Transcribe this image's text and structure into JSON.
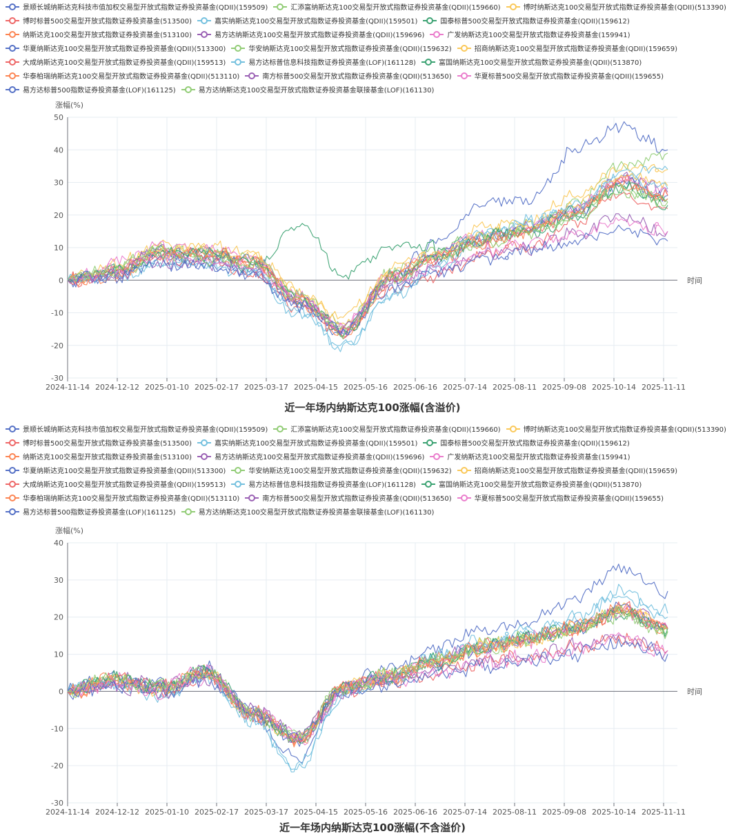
{
  "colors": [
    "#5470c6",
    "#91cc75",
    "#fac858",
    "#ee6666",
    "#73c0de",
    "#3ba272",
    "#fc8452",
    "#9a60b4",
    "#ea7ccc"
  ],
  "legend": [
    "景顺长城纳斯达克科技市值加权交易型开放式指数证券投资基金(QDII)(159509)",
    "汇添富纳斯达克100交易型开放式指数证券投资基金(QDII)(159660)",
    "博时纳斯达克100交易型开放式指数证券投资基金(QDII)(513390)",
    "博时标普500交易型开放式指数证券投资基金(513500)",
    "嘉实纳斯达克100交易型开放式指数证券投资基金(QDII)(159501)",
    "国泰标普500交易型开放式指数证券投资基金(QDII)(159612)",
    "纳斯达克100交易型开放式指数证券投资基金(513100)",
    "易方达纳斯达克100交易型开放式指数证券投资基金(QDII)(159696)",
    "广发纳斯达克100交易型开放式指数证券投资基金(159941)",
    "华夏纳斯达克100交易型开放式指数证券投资基金(QDII)(513300)",
    "华安纳斯达克100交易型开放式指数证券投资基金(QDII)(159632)",
    "招商纳斯达克100交易型开放式指数证券投资基金(QDII)(159659)",
    "大成纳斯达克100交易型开放式指数证券投资基金(QDII)(159513)",
    "易方达标普信息科技指数证券投资基金(LOF)(161128)",
    "富国纳斯达克100交易型开放式指数证券投资基金(QDII)(513870)",
    "华泰柏瑞纳斯达克100交易型开放式指数证券投资基金(QDII)(513110)",
    "南方标普500交易型开放式指数证券投资基金(QDII)(513650)",
    "华夏标普500交易型开放式指数证券投资基金(QDII)(159655)",
    "易方达标普500指数证券投资基金(LOF)(161125)",
    "易方达纳斯达克100交易型开放式指数证券投资基金联接基金(LOF)(161130)"
  ],
  "chart_data": [
    {
      "type": "line",
      "title": "近一年场内纳斯达克100涨幅(含溢价)",
      "ylabel": "涨幅(%)",
      "xlabel": "时间",
      "ylim": [
        -30,
        50
      ],
      "yticks": [
        -30,
        -20,
        -10,
        0,
        10,
        20,
        30,
        40,
        50
      ],
      "x_tick_labels": [
        "2024-11-14",
        "2024-12-12",
        "2025-01-10",
        "2025-02-17",
        "2025-03-17",
        "2025-04-15",
        "2025-05-16",
        "2025-06-16",
        "2025-07-14",
        "2025-08-11",
        "2025-09-08",
        "2025-10-14",
        "2025-11-11"
      ],
      "grid": true,
      "legend_position": "top",
      "series": [
        {
          "name": "景顺长城纳斯达克科技市值加权交易型开放式指数证券投资基金(QDII)(159509)",
          "values": [
            0,
            2,
            9,
            6,
            3,
            -7,
            -16,
            0,
            12,
            24,
            25,
            40,
            48,
            40
          ]
        },
        {
          "name": "汇添富纳斯达克100交易型开放式指数证券投资基金(QDII)(159660)",
          "values": [
            0,
            3,
            10,
            9,
            6,
            -5,
            -14,
            2,
            9,
            13,
            17,
            23,
            35,
            39
          ]
        },
        {
          "name": "博时纳斯达克100交易型开放式指数证券投资基金(QDII)(513390)",
          "values": [
            0,
            4,
            11,
            10,
            8,
            -4,
            -12,
            4,
            8,
            16,
            18,
            26,
            34,
            34
          ]
        },
        {
          "name": "博时标普500交易型开放式指数证券投资基金(513500)",
          "values": [
            0,
            2,
            7,
            6,
            3,
            -8,
            -16,
            -3,
            1,
            8,
            10,
            18,
            26,
            22
          ]
        },
        {
          "name": "嘉实纳斯达克100交易型开放式指数证券投资基金(QDII)(159501)",
          "values": [
            0,
            1,
            5,
            5,
            2,
            -10,
            -20,
            -5,
            3,
            15,
            18,
            22,
            32,
            34
          ]
        },
        {
          "name": "国泰标普500交易型开放式指数证券投资基金(QDII)(159612)",
          "values": [
            0,
            3,
            9,
            7,
            4,
            17,
            2,
            10,
            10,
            13,
            15,
            19,
            29,
            23
          ]
        },
        {
          "name": "纳斯达克100交易型开放式指数证券投资基金(513100)",
          "values": [
            0,
            2,
            8,
            8,
            6,
            -6,
            -17,
            0,
            6,
            12,
            15,
            21,
            30,
            26
          ]
        },
        {
          "name": "易方达纳斯达克100交易型开放式指数证券投资基金(QDII)(159696)",
          "values": [
            0,
            2,
            9,
            8,
            6,
            -5,
            -16,
            1,
            7,
            13,
            16,
            22,
            31,
            27
          ]
        },
        {
          "name": "广发纳斯达克100交易型开放式指数证券投资基金(159941)",
          "values": [
            0,
            5,
            10,
            9,
            7,
            -5,
            -15,
            2,
            8,
            14,
            16,
            22,
            31,
            28
          ]
        },
        {
          "name": "华夏纳斯达克100交易型开放式指数证券投资基金(QDII)(513300)",
          "values": [
            0,
            2,
            8,
            8,
            6,
            -6,
            -16,
            1,
            7,
            13,
            15,
            21,
            30,
            26
          ]
        },
        {
          "name": "华安纳斯达克100交易型开放式指数证券投资基金(QDII)(159632)",
          "values": [
            0,
            3,
            9,
            8,
            6,
            -5,
            -15,
            1,
            7,
            12,
            15,
            20,
            28,
            24
          ]
        },
        {
          "name": "招商纳斯达克100交易型开放式指数证券投资基金(QDII)(159659)",
          "values": [
            0,
            3,
            9,
            9,
            7,
            -4,
            -14,
            2,
            8,
            14,
            17,
            23,
            32,
            29
          ]
        },
        {
          "name": "大成纳斯达克100交易型开放式指数证券投资基金(QDII)(159513)",
          "values": [
            0,
            2,
            8,
            8,
            6,
            -6,
            -17,
            0,
            6,
            12,
            15,
            21,
            30,
            26
          ]
        },
        {
          "name": "易方达标普信息科技指数证券投资基金(LOF)(161128)",
          "values": [
            0,
            1,
            6,
            5,
            3,
            -9,
            -21,
            -4,
            4,
            15,
            17,
            23,
            33,
            28
          ]
        },
        {
          "name": "富国纳斯达克100交易型开放式指数证券投资基金(QDII)(513870)",
          "values": [
            0,
            2,
            8,
            8,
            6,
            -6,
            -16,
            1,
            7,
            13,
            15,
            21,
            29,
            25
          ]
        },
        {
          "name": "华泰柏瑞纳斯达克100交易型开放式指数证券投资基金(QDII)(513110)",
          "values": [
            0,
            2,
            8,
            8,
            6,
            -6,
            -16,
            1,
            7,
            13,
            15,
            21,
            30,
            25
          ]
        },
        {
          "name": "南方标普500交易型开放式指数证券投资基金(QDII)(513650)",
          "values": [
            0,
            2,
            6,
            5,
            3,
            -7,
            -15,
            -1,
            3,
            8,
            10,
            14,
            19,
            15
          ]
        },
        {
          "name": "华夏标普500交易型开放式指数证券投资基金(QDII)(159655)",
          "values": [
            0,
            3,
            7,
            6,
            4,
            -6,
            -14,
            0,
            4,
            9,
            11,
            15,
            18,
            15
          ]
        },
        {
          "name": "易方达标普500指数证券投资基金(LOF)(161125)",
          "values": [
            0,
            1,
            5,
            4,
            2,
            -8,
            -15,
            -2,
            2,
            7,
            9,
            12,
            16,
            12
          ]
        },
        {
          "name": "易方达纳斯达克100交易型开放式指数证券投资基金联接基金(LOF)(161130)",
          "values": [
            0,
            2,
            8,
            7,
            5,
            -6,
            -16,
            0,
            6,
            12,
            14,
            20,
            28,
            24
          ]
        }
      ]
    },
    {
      "type": "line",
      "title": "近一年场内纳斯达克100涨幅(不含溢价)",
      "ylabel": "涨幅(%)",
      "xlabel": "时间",
      "ylim": [
        -30,
        40
      ],
      "yticks": [
        -30,
        -20,
        -10,
        0,
        10,
        20,
        30,
        40
      ],
      "x_tick_labels": [
        "2024-11-14",
        "2024-12-12",
        "2025-01-10",
        "2025-02-17",
        "2025-03-17",
        "2025-04-15",
        "2025-05-16",
        "2025-06-16",
        "2025-07-14",
        "2025-08-11",
        "2025-09-08",
        "2025-10-14",
        "2025-11-11"
      ],
      "grid": true,
      "legend_position": "top",
      "series": [
        {
          "name": "景顺长城纳斯达克科技市值加权交易型开放式指数证券投资基金(QDII)(159509)",
          "values": [
            0,
            3,
            2,
            6,
            -6,
            -18,
            1,
            6,
            11,
            17,
            19,
            25,
            34,
            27
          ]
        },
        {
          "name": "汇添富纳斯达克100交易型开放式指数证券投资基金(QDII)(159660)",
          "values": [
            0,
            3,
            1,
            5,
            -6,
            -13,
            1,
            4,
            8,
            12,
            14,
            17,
            21,
            16
          ]
        },
        {
          "name": "博时纳斯达克100交易型开放式指数证券投资基金(QDII)(513390)",
          "values": [
            0,
            3,
            1,
            5,
            -6,
            -13,
            1,
            4,
            8,
            12,
            14,
            17,
            22,
            17
          ]
        },
        {
          "name": "博时标普500交易型开放式指数证券投资基金(513500)",
          "values": [
            0,
            2,
            0,
            4,
            -5,
            -12,
            0,
            3,
            5,
            8,
            9,
            12,
            14,
            11
          ]
        },
        {
          "name": "嘉实纳斯达克100交易型开放式指数证券投资基金(QDII)(159501)",
          "values": [
            0,
            2,
            0,
            5,
            -8,
            -20,
            0,
            4,
            9,
            13,
            16,
            20,
            26,
            20
          ]
        },
        {
          "name": "国泰标普500交易型开放式指数证券投资基金(QDII)(159612)",
          "values": [
            0,
            3,
            1,
            6,
            -6,
            -13,
            1,
            4,
            8,
            12,
            14,
            17,
            21,
            17
          ]
        },
        {
          "name": "纳斯达克100交易型开放式指数证券投资基金(513100)",
          "values": [
            0,
            3,
            1,
            5,
            -6,
            -13,
            1,
            4,
            8,
            12,
            14,
            17,
            22,
            17
          ]
        },
        {
          "name": "易方达纳斯达克100交易型开放式指数证券投资基金(QDII)(159696)",
          "values": [
            0,
            3,
            1,
            5,
            -6,
            -13,
            1,
            4,
            8,
            12,
            14,
            17,
            22,
            17
          ]
        },
        {
          "name": "广发纳斯达克100交易型开放式指数证券投资基金(159941)",
          "values": [
            0,
            3,
            1,
            5,
            -6,
            -13,
            1,
            4,
            8,
            12,
            14,
            17,
            22,
            17
          ]
        },
        {
          "name": "华夏纳斯达克100交易型开放式指数证券投资基金(QDII)(513300)",
          "values": [
            0,
            3,
            1,
            5,
            -6,
            -13,
            1,
            4,
            8,
            12,
            14,
            17,
            22,
            17
          ]
        },
        {
          "name": "华安纳斯达克100交易型开放式指数证券投资基金(QDII)(159632)",
          "values": [
            0,
            3,
            1,
            5,
            -6,
            -13,
            1,
            4,
            8,
            12,
            14,
            17,
            21,
            16
          ]
        },
        {
          "name": "招商纳斯达克100交易型开放式指数证券投资基金(QDII)(159659)",
          "values": [
            0,
            3,
            1,
            5,
            -6,
            -13,
            1,
            4,
            8,
            12,
            14,
            17,
            22,
            17
          ]
        },
        {
          "name": "大成纳斯达克100交易型开放式指数证券投资基金(QDII)(159513)",
          "values": [
            0,
            3,
            1,
            5,
            -6,
            -13,
            1,
            4,
            8,
            12,
            14,
            17,
            22,
            17
          ]
        },
        {
          "name": "易方达标普信息科技指数证券投资基金(LOF)(161128)",
          "values": [
            0,
            2,
            -1,
            4,
            -8,
            -21,
            -1,
            4,
            9,
            13,
            16,
            20,
            27,
            21
          ]
        },
        {
          "name": "富国纳斯达克100交易型开放式指数证券投资基金(QDII)(513870)",
          "values": [
            0,
            3,
            1,
            5,
            -6,
            -13,
            1,
            4,
            8,
            12,
            14,
            17,
            22,
            17
          ]
        },
        {
          "name": "华泰柏瑞纳斯达克100交易型开放式指数证券投资基金(QDII)(513110)",
          "values": [
            0,
            3,
            1,
            5,
            -6,
            -13,
            1,
            4,
            8,
            12,
            14,
            17,
            22,
            17
          ]
        },
        {
          "name": "南方标普500交易型开放式指数证券投资基金(QDII)(513650)",
          "values": [
            0,
            2,
            0,
            4,
            -5,
            -12,
            0,
            3,
            5,
            8,
            9,
            12,
            14,
            11
          ]
        },
        {
          "name": "华夏标普500交易型开放式指数证券投资基金(QDII)(159655)",
          "values": [
            0,
            2,
            0,
            4,
            -5,
            -12,
            0,
            3,
            5,
            8,
            9,
            12,
            14,
            11
          ]
        },
        {
          "name": "易方达标普500指数证券投资基金(LOF)(161125)",
          "values": [
            0,
            2,
            0,
            3,
            -5,
            -12,
            0,
            2,
            4,
            7,
            8,
            10,
            13,
            10
          ]
        },
        {
          "name": "易方达纳斯达克100交易型开放式指数证券投资基金联接基金(LOF)(161130)",
          "values": [
            0,
            3,
            1,
            5,
            -6,
            -13,
            1,
            4,
            8,
            12,
            14,
            17,
            21,
            16
          ]
        }
      ]
    }
  ]
}
